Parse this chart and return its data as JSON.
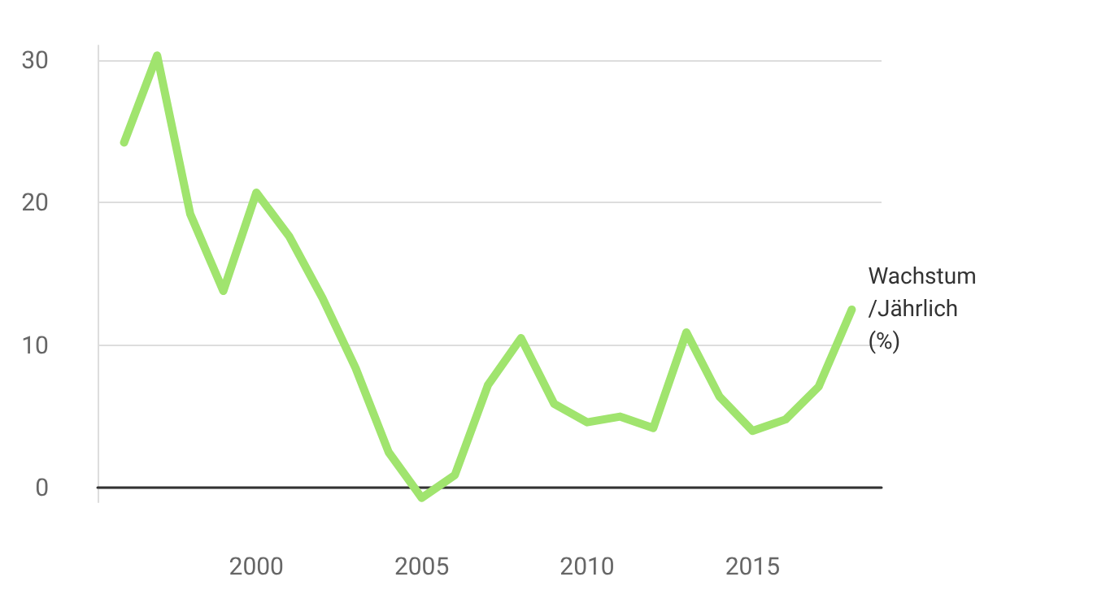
{
  "chart_data": {
    "type": "line",
    "x": [
      1996,
      1997,
      1998,
      1999,
      2000,
      2001,
      2002,
      2003,
      2004,
      2005,
      2006,
      2007,
      2008,
      2009,
      2010,
      2011,
      2012,
      2013,
      2014,
      2015,
      2016,
      2017,
      2018
    ],
    "series": [
      {
        "name": "Wachstum /Jährlich (%)",
        "color": "#a0e46e",
        "values": [
          24.2,
          30.3,
          19.2,
          13.8,
          20.7,
          17.6,
          13.3,
          8.4,
          2.5,
          -0.7,
          0.9,
          7.2,
          10.5,
          5.9,
          4.6,
          5.0,
          4.2,
          10.9,
          6.4,
          4.0,
          4.8,
          7.1,
          12.5
        ]
      }
    ],
    "xlim": [
      1995.2,
      2018.9
    ],
    "xticks": [
      2000,
      2005,
      2010,
      2015
    ],
    "ylim": [
      -1,
      31
    ],
    "yticks": [
      0,
      10,
      20,
      30
    ],
    "grid": "y",
    "legend": false,
    "marker": "none",
    "line_style": "solid"
  }
}
